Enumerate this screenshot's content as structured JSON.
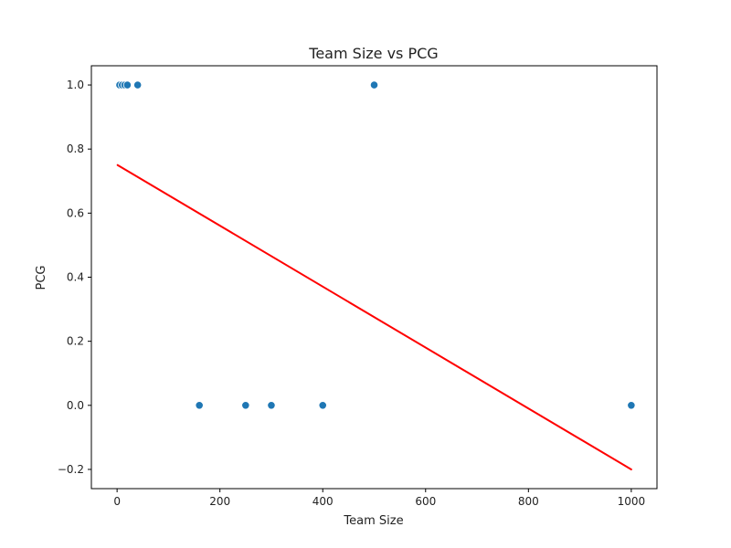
{
  "chart_data": {
    "type": "scatter",
    "title": "Team Size vs PCG",
    "xlabel": "Team Size",
    "ylabel": "PCG",
    "xlim": [
      -50,
      1050
    ],
    "ylim": [
      -0.26,
      1.06
    ],
    "xticks": [
      0,
      200,
      400,
      600,
      800,
      1000
    ],
    "yticks": [
      -0.2,
      0.0,
      0.2,
      0.4,
      0.6,
      0.8,
      1.0
    ],
    "xtick_labels": [
      "0",
      "200",
      "400",
      "600",
      "800",
      "1000"
    ],
    "ytick_labels": [
      "−0.2",
      "0.0",
      "0.2",
      "0.4",
      "0.6",
      "0.8",
      "1.0"
    ],
    "grid": false,
    "series": [
      {
        "type": "scatter",
        "points": [
          {
            "x": 1,
            "y": 1
          },
          {
            "x": 2,
            "y": 1
          },
          {
            "x": 3,
            "y": 1
          },
          {
            "x": 4,
            "y": 1
          },
          {
            "x": 5,
            "y": 1
          },
          {
            "x": 10,
            "y": 1
          },
          {
            "x": 15,
            "y": 1
          },
          {
            "x": 20,
            "y": 1
          },
          {
            "x": 40,
            "y": 1
          },
          {
            "x": 500,
            "y": 1
          },
          {
            "x": 160,
            "y": 0
          },
          {
            "x": 250,
            "y": 0
          },
          {
            "x": 300,
            "y": 0
          },
          {
            "x": 400,
            "y": 0
          },
          {
            "x": 1000,
            "y": 0
          }
        ]
      },
      {
        "type": "line",
        "points": [
          {
            "x": 1,
            "y": 0.75
          },
          {
            "x": 1000,
            "y": -0.2
          }
        ]
      }
    ],
    "colors": {
      "points": "#1f77b4",
      "point_edge": "#ffffff",
      "trend": "#ff0000",
      "axes": "#000000"
    }
  }
}
